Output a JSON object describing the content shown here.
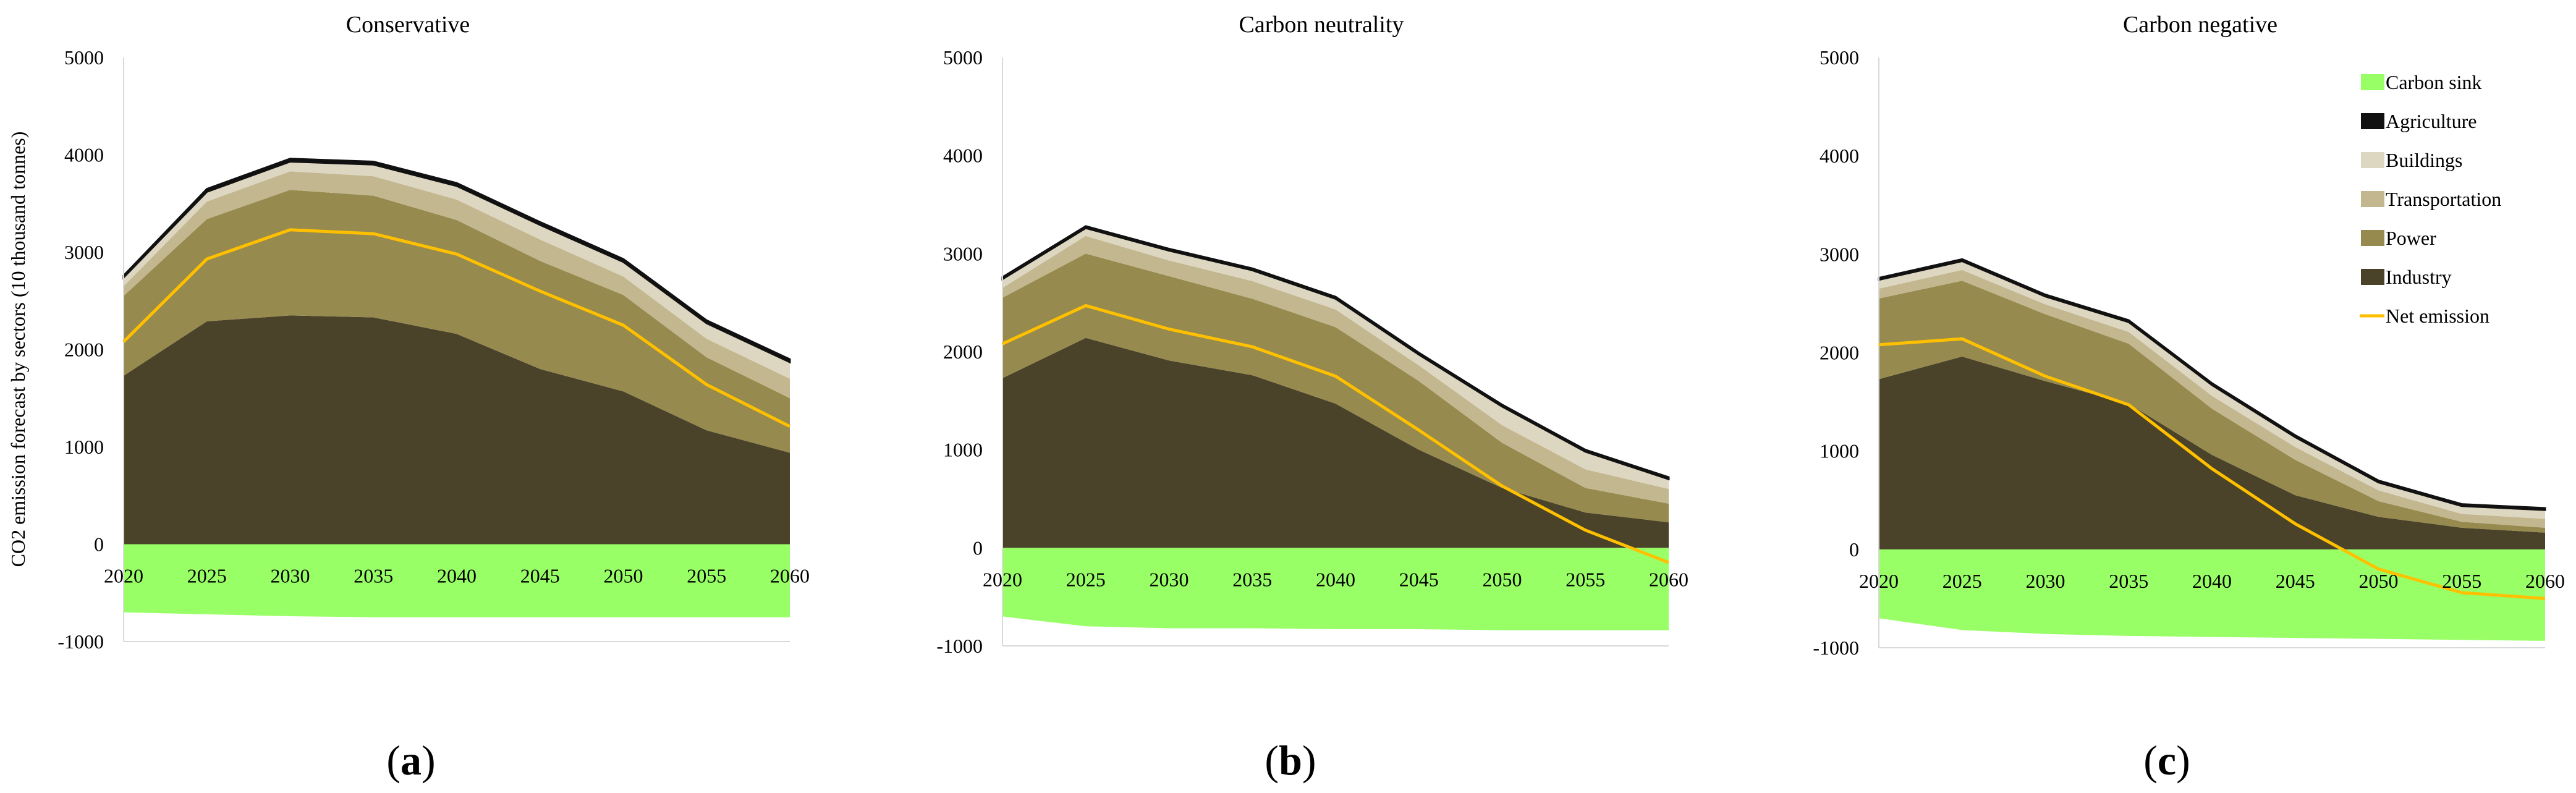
{
  "figure": {
    "ylabel": "CO2 emission forecast by sectors (10 thousand tonnes)"
  },
  "legend": {
    "placement": "top-right of panel (c)",
    "items": [
      {
        "key": "sink",
        "label": "Carbon sink",
        "color": "#99ff66",
        "kind": "area"
      },
      {
        "key": "agriculture",
        "label": "Agriculture",
        "color": "#111111",
        "kind": "area"
      },
      {
        "key": "buildings",
        "label": "Buildings",
        "color": "#ddd6c0",
        "kind": "area"
      },
      {
        "key": "transportation",
        "label": "Transportation",
        "color": "#c3b78f",
        "kind": "area"
      },
      {
        "key": "power",
        "label": "Power",
        "color": "#968a4e",
        "kind": "area"
      },
      {
        "key": "industry",
        "label": "Industry",
        "color": "#4a432a",
        "kind": "area"
      },
      {
        "key": "net",
        "label": "Net emission",
        "color": "#ffc000",
        "kind": "line"
      }
    ]
  },
  "chart_data": [
    {
      "type": "area",
      "stacked": true,
      "title": "Conservative",
      "caption": "a",
      "x": [
        2020,
        2025,
        2030,
        2035,
        2040,
        2045,
        2050,
        2055,
        2060
      ],
      "ylim": [
        -1000,
        5000
      ],
      "yticks": [
        -1000,
        0,
        1000,
        2000,
        3000,
        4000,
        5000
      ],
      "grid": false,
      "series": [
        {
          "key": "industry",
          "name": "Industry",
          "values": [
            1730,
            2290,
            2350,
            2330,
            2160,
            1800,
            1570,
            1170,
            940
          ]
        },
        {
          "key": "power",
          "name": "Power",
          "values": [
            820,
            1050,
            1290,
            1250,
            1170,
            1110,
            990,
            750,
            560
          ]
        },
        {
          "key": "transportation",
          "name": "Transportation",
          "values": [
            100,
            180,
            190,
            200,
            210,
            220,
            190,
            190,
            200
          ]
        },
        {
          "key": "buildings",
          "name": "Buildings",
          "values": [
            90,
            100,
            100,
            120,
            140,
            150,
            150,
            160,
            170
          ]
        },
        {
          "key": "agriculture",
          "name": "Agriculture",
          "values": [
            20,
            30,
            30,
            30,
            30,
            30,
            30,
            30,
            30
          ]
        },
        {
          "key": "sink",
          "name": "Carbon sink",
          "values": [
            -700,
            -720,
            -740,
            -750,
            -750,
            -750,
            -750,
            -750,
            -750
          ]
        }
      ],
      "net_emission": [
        2080,
        2930,
        3230,
        3190,
        2980,
        2600,
        2250,
        1640,
        1210
      ]
    },
    {
      "type": "area",
      "stacked": true,
      "title": "Carbon neutrality",
      "caption": "b",
      "x": [
        2020,
        2025,
        2030,
        2035,
        2040,
        2045,
        2050,
        2055,
        2060
      ],
      "ylim": [
        -1000,
        5000
      ],
      "yticks": [
        -1000,
        0,
        1000,
        2000,
        3000,
        4000,
        5000
      ],
      "grid": false,
      "series": [
        {
          "key": "industry",
          "name": "Industry",
          "values": [
            1730,
            2140,
            1910,
            1760,
            1470,
            1000,
            610,
            360,
            260
          ]
        },
        {
          "key": "power",
          "name": "Power",
          "values": [
            820,
            860,
            860,
            780,
            780,
            700,
            460,
            250,
            190
          ]
        },
        {
          "key": "transportation",
          "name": "Transportation",
          "values": [
            100,
            180,
            160,
            180,
            180,
            160,
            180,
            190,
            150
          ]
        },
        {
          "key": "buildings",
          "name": "Buildings",
          "values": [
            90,
            80,
            100,
            110,
            110,
            110,
            190,
            180,
            100
          ]
        },
        {
          "key": "agriculture",
          "name": "Agriculture",
          "values": [
            20,
            20,
            20,
            20,
            20,
            20,
            20,
            20,
            20
          ]
        },
        {
          "key": "sink",
          "name": "Carbon sink",
          "values": [
            -700,
            -800,
            -820,
            -820,
            -830,
            -830,
            -840,
            -840,
            -840
          ]
        }
      ],
      "net_emission": [
        2080,
        2470,
        2230,
        2050,
        1750,
        1200,
        630,
        180,
        -150
      ]
    },
    {
      "type": "area",
      "stacked": true,
      "title": "Carbon negative",
      "caption": "c",
      "x": [
        2020,
        2025,
        2030,
        2035,
        2040,
        2045,
        2050,
        2055,
        2060
      ],
      "ylim": [
        -1000,
        5000
      ],
      "yticks": [
        -1000,
        0,
        1000,
        2000,
        3000,
        4000,
        5000
      ],
      "grid": false,
      "series": [
        {
          "key": "industry",
          "name": "Industry",
          "values": [
            1730,
            1960,
            1710,
            1480,
            960,
            550,
            330,
            220,
            170
          ]
        },
        {
          "key": "power",
          "name": "Power",
          "values": [
            820,
            770,
            680,
            610,
            470,
            360,
            160,
            60,
            50
          ]
        },
        {
          "key": "transportation",
          "name": "Transportation",
          "values": [
            100,
            110,
            100,
            120,
            130,
            130,
            110,
            80,
            90
          ]
        },
        {
          "key": "buildings",
          "name": "Buildings",
          "values": [
            90,
            90,
            80,
            100,
            110,
            100,
            80,
            80,
            90
          ]
        },
        {
          "key": "agriculture",
          "name": "Agriculture",
          "values": [
            20,
            20,
            20,
            20,
            20,
            20,
            20,
            20,
            20
          ]
        },
        {
          "key": "sink",
          "name": "Carbon sink",
          "values": [
            -700,
            -820,
            -860,
            -880,
            -890,
            -900,
            -910,
            -920,
            -930
          ]
        }
      ],
      "net_emission": [
        2080,
        2140,
        1760,
        1470,
        820,
        260,
        -200,
        -440,
        -500
      ]
    }
  ]
}
